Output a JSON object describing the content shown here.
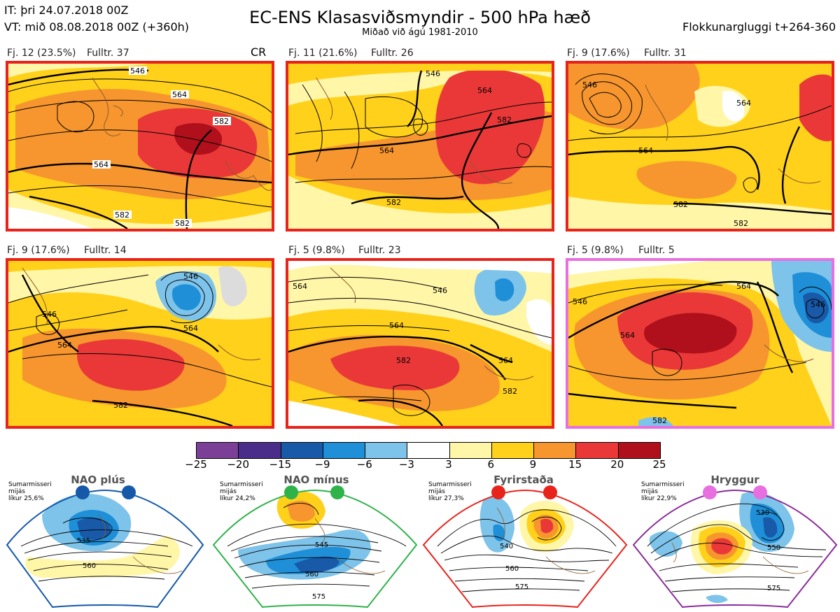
{
  "header": {
    "it_line": "IT: þri 24.07.2018 00Z",
    "vt_line": "VT: mið 08.08.2018 00Z  (+360h)",
    "title": "EC-ENS Klasasviðsmyndir - 500 hPa hæð",
    "subtitle": "Miðað við ágú 1981-2010",
    "window": "Flokkunargluggi t+264-360"
  },
  "panels": [
    {
      "label": "Fj. 12 (23.5%)",
      "members": "Fulltr. 37",
      "extra": "CR",
      "border": "#e8231c",
      "contours": [
        "546",
        "564",
        "564",
        "582",
        "564",
        "582",
        "582"
      ]
    },
    {
      "label": "Fj. 11 (21.6%)",
      "members": "Fulltr. 26",
      "extra": "",
      "border": "#e8231c",
      "contours": [
        "564",
        "546",
        "564",
        "582",
        "582",
        "564"
      ]
    },
    {
      "label": "Fj. 9 (17.6%)",
      "members": "Fulltr. 31",
      "extra": "",
      "border": "#e8231c",
      "contours": [
        "546",
        "546",
        "564",
        "564",
        "582",
        "582"
      ]
    },
    {
      "label": "Fj. 9 (17.6%)",
      "members": "Fulltr. 14",
      "extra": "",
      "border": "#e8231c",
      "contours": [
        "546",
        "546",
        "546",
        "564",
        "564",
        "582",
        "582"
      ]
    },
    {
      "label": "Fj. 5 (9.8%)",
      "members": "Fulltr. 23",
      "extra": "",
      "border": "#e8231c",
      "contours": [
        "564",
        "546",
        "564",
        "564",
        "582",
        "582",
        "582"
      ]
    },
    {
      "label": "Fj. 5 (9.8%)",
      "members": "Fulltr. 5",
      "extra": "",
      "border": "#e86fe0",
      "contours": [
        "546",
        "564",
        "546",
        "564",
        "582",
        "582"
      ]
    }
  ],
  "colorbar": {
    "ticks": [
      "−25",
      "−20",
      "−15",
      "−9",
      "−6",
      "−3",
      "3",
      "6",
      "9",
      "15",
      "20",
      "25"
    ],
    "colors": [
      "#7b3f98",
      "#4a2c8a",
      "#1859a8",
      "#1f8fd8",
      "#7ec3ea",
      "#ffffff",
      "#fff6a8",
      "#ffd11a",
      "#f7962e",
      "#ea3838",
      "#b0101c"
    ]
  },
  "regimes": [
    {
      "name": "NAO plús",
      "note": [
        "Sumarmisseri",
        "mijás",
        "líkur 25,6%"
      ],
      "dot_color": "#1559a8",
      "border": "#1559a8",
      "contours": [
        "535",
        "560"
      ]
    },
    {
      "name": "NAO mínus",
      "note": [
        "Sumarmisseri",
        "mijás",
        "líkur 24,2%"
      ],
      "dot_color": "#2fb24a",
      "border": "#2fb24a",
      "contours": [
        "545",
        "560",
        "575"
      ]
    },
    {
      "name": "Fyrirstaða",
      "note": [
        "Sumarmisseri",
        "mijás",
        "líkur 27,3%"
      ],
      "dot_color": "#e8231c",
      "border": "#e8231c",
      "contours": [
        "540",
        "560",
        "575"
      ]
    },
    {
      "name": "Hryggur",
      "note": [
        "Sumarmisseri",
        "mijás",
        "líkur 22,9%"
      ],
      "dot_color": "#e86fe0",
      "border": "#8a2c9a",
      "contours": [
        "530",
        "550",
        "575"
      ]
    }
  ]
}
